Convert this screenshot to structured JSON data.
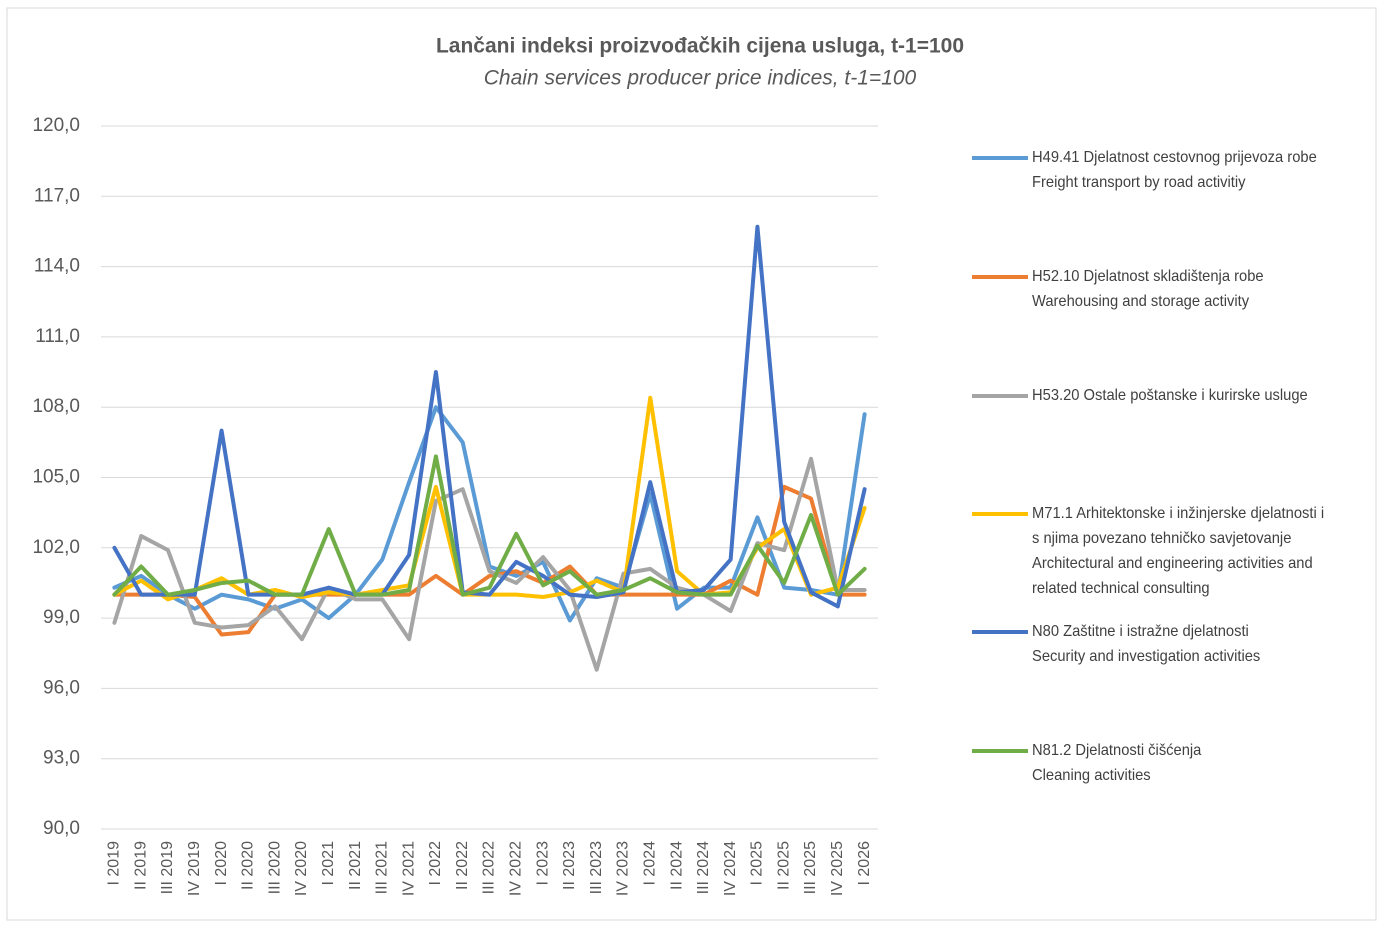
{
  "chart_data": {
    "type": "line",
    "title": "Lančani indeksi proizvođačkih cijena usluga, t-1=100",
    "subtitle": "Chain services producer price indices, t-1=100",
    "categories": [
      "I 2019",
      "II 2019",
      "III 2019",
      "IV 2019",
      "I 2020",
      "II 2020",
      "III 2020",
      "IV 2020",
      "I 2021",
      "II 2021",
      "III 2021",
      "IV 2021",
      "I 2022",
      "II 2022",
      "III 2022",
      "IV 2022",
      "I 2023",
      "II 2023",
      "III 2023",
      "IV 2023",
      "I 2024",
      "II 2024",
      "III 2024",
      "IV 2024",
      "I 2025",
      "II 2025",
      "III 2025",
      "IV 2025",
      "I 2026"
    ],
    "ylim": [
      90,
      120
    ],
    "yticks": [
      {
        "value": 90,
        "label": "90,0"
      },
      {
        "value": 93,
        "label": "93,0"
      },
      {
        "value": 96,
        "label": "96,0"
      },
      {
        "value": 99,
        "label": "99,0"
      },
      {
        "value": 102,
        "label": "102,0"
      },
      {
        "value": 105,
        "label": "105,0"
      },
      {
        "value": 108,
        "label": "108,0"
      },
      {
        "value": 111,
        "label": "111,0"
      },
      {
        "value": 114,
        "label": "114,0"
      },
      {
        "value": 117,
        "label": "117,0"
      },
      {
        "value": 120,
        "label": "120,0"
      }
    ],
    "grid": true,
    "legend": "right",
    "series": [
      {
        "name": "H49.41 Djelatnost cestovnog prijevoza robe\nFreight transport by road activitiy",
        "color": "#5b9bd5",
        "values": [
          100.3,
          100.8,
          100.0,
          99.4,
          100.0,
          99.8,
          99.4,
          99.8,
          99.0,
          100.0,
          101.5,
          104.8,
          108.0,
          106.5,
          101.2,
          100.8,
          101.4,
          98.9,
          100.7,
          100.3,
          104.3,
          99.4,
          100.3,
          100.3,
          103.3,
          100.3,
          100.2,
          100.0,
          107.7
        ]
      },
      {
        "name": "H52.10 Djelatnost skladištenja robe\nWarehousing and storage activity",
        "color": "#ed7d31",
        "values": [
          100.0,
          100.0,
          100.0,
          99.9,
          98.3,
          98.4,
          100.0,
          100.0,
          100.0,
          100.0,
          100.0,
          100.0,
          100.8,
          100.0,
          100.8,
          101.0,
          100.5,
          101.2,
          100.0,
          100.0,
          100.0,
          100.0,
          100.0,
          100.6,
          100.0,
          104.6,
          104.1,
          100.0,
          100.0
        ]
      },
      {
        "name": "H53.20 Ostale poštanske i kurirske usluge",
        "color": "#a5a5a5",
        "values": [
          98.8,
          102.5,
          101.9,
          98.8,
          98.6,
          98.7,
          99.5,
          98.1,
          100.3,
          99.8,
          99.8,
          98.1,
          104.0,
          104.5,
          101.0,
          100.5,
          101.6,
          100.2,
          96.8,
          100.9,
          101.1,
          100.3,
          100.0,
          99.3,
          102.2,
          101.9,
          105.8,
          100.2,
          100.2
        ]
      },
      {
        "name": "M71.1 Arhitektonske i inžinjerske djelatnosti i\ns njima povezano tehničko savjetovanje\nArchitectural and engineering activities and\nrelated technical consulting",
        "color": "#ffc000",
        "values": [
          100.0,
          100.6,
          99.8,
          100.2,
          100.7,
          100.0,
          100.2,
          99.9,
          100.1,
          100.0,
          100.2,
          100.4,
          104.6,
          100.0,
          100.0,
          100.0,
          99.9,
          100.1,
          100.6,
          100.1,
          108.4,
          101.0,
          100.0,
          100.1,
          102.0,
          102.8,
          100.0,
          100.3,
          103.7
        ]
      },
      {
        "name": "N80 Zaštitne i istražne djelatnosti\nSecurity and investigation activities",
        "color": "#4472c4",
        "values": [
          102.0,
          100.0,
          100.0,
          100.0,
          107.0,
          100.0,
          100.0,
          100.0,
          100.3,
          100.0,
          100.0,
          101.7,
          109.5,
          100.1,
          100.0,
          101.4,
          100.8,
          100.0,
          99.9,
          100.1,
          104.8,
          100.1,
          100.2,
          101.5,
          115.7,
          103.1,
          100.1,
          99.5,
          104.5
        ]
      },
      {
        "name": "N81.2 Djelatnosti čišćenja\nCleaning activities",
        "color": "#70ad47",
        "values": [
          100.0,
          101.2,
          100.0,
          100.2,
          100.5,
          100.6,
          100.0,
          100.0,
          102.8,
          100.0,
          100.0,
          100.2,
          105.9,
          100.0,
          100.3,
          102.6,
          100.4,
          101.0,
          100.0,
          100.2,
          100.7,
          100.1,
          100.0,
          100.0,
          102.1,
          100.5,
          103.4,
          100.0,
          101.1
        ]
      }
    ]
  }
}
